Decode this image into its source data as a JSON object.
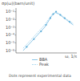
{
  "chart_data": {
    "type": "line",
    "y_label": "σp(ω)(barn/unit)",
    "x_label": "ω, 1/s",
    "annotations": [
      "Dots represent experimental data"
    ],
    "log": "y",
    "grid": false,
    "legend": "bottom",
    "tick_labels": "y",
    "xlim": [
      0.2,
      1.05
    ],
    "ylim": [
      5e-07,
      0.3
    ],
    "yticks": [
      {
        "value": 1e-06,
        "label": "10⁻⁶"
      },
      {
        "value": 1e-05,
        "label": "10⁻⁵"
      },
      {
        "value": 0.0001,
        "label": "10⁻⁴"
      },
      {
        "value": 0.001,
        "label": "10⁻³"
      },
      {
        "value": 0.01,
        "label": "10⁻²"
      },
      {
        "value": 0.1,
        "label": "10⁻¹"
      }
    ],
    "x": [
      0.3,
      0.4,
      0.5,
      0.6,
      0.7,
      0.75,
      0.8,
      0.9,
      1.0
    ],
    "series": [
      {
        "name": "BBA",
        "type": "line",
        "line_style": "solid",
        "color": "#7fc0e4",
        "values": [
          1e-06,
          1e-05,
          0.0001,
          0.001,
          0.03,
          0.08,
          0.05,
          0.01,
          0.002
        ]
      },
      {
        "name": "Peak",
        "type": "line",
        "line_style": "dashed",
        "color": "#a8d6ee",
        "values": [
          2e-06,
          2e-05,
          0.0002,
          0.002,
          0.04,
          0.09,
          0.06,
          0.012,
          0.003
        ]
      },
      {
        "type": "scatter",
        "marker": "circle",
        "color": "#5aaad6",
        "x": [
          0.35,
          0.45,
          0.55,
          0.62,
          0.68,
          0.72,
          0.76,
          0.82,
          0.88,
          0.95
        ],
        "values": [
          3e-06,
          3e-05,
          0.0003,
          0.002,
          0.015,
          0.05,
          0.1,
          0.04,
          0.015,
          0.005
        ]
      }
    ]
  }
}
